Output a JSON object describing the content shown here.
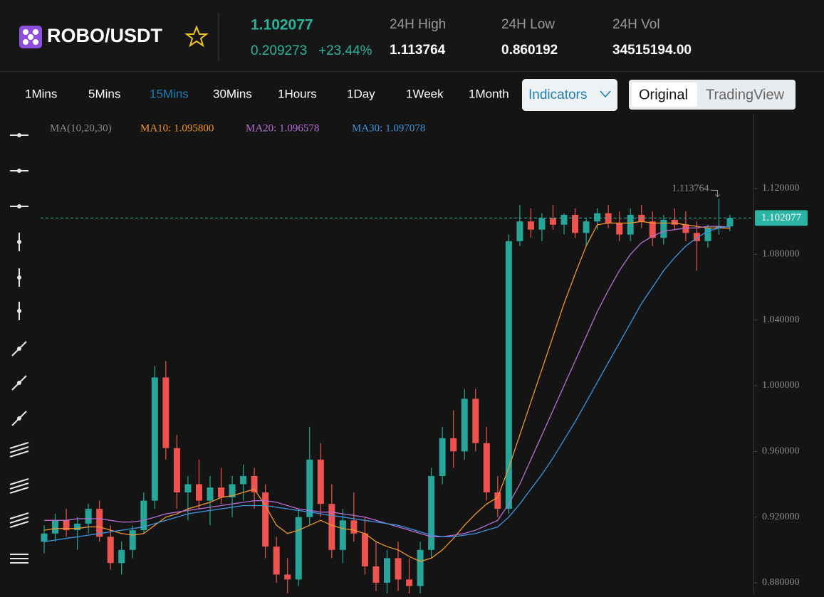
{
  "header": {
    "pair": "ROBO/USDT",
    "price": "1.102077",
    "change": "0.209273",
    "change_pct": "+23.44%",
    "stats": [
      {
        "label": "24H High",
        "value": "1.113764"
      },
      {
        "label": "24H Low",
        "value": "0.860192"
      },
      {
        "label": "24H Vol",
        "value": "34515194.00"
      }
    ]
  },
  "toolbar": {
    "intervals": [
      "1Mins",
      "5Mins",
      "15Mins",
      "30Mins",
      "1Hours",
      "1Day",
      "1Week",
      "1Month"
    ],
    "selected": 2,
    "indicators": "Indicators",
    "views": [
      "Original",
      "TradingView"
    ],
    "selected_view": 0
  },
  "chart_data": {
    "type": "candlestick",
    "legend_title": "MA(10,20,30)",
    "up_color": "#26a69a",
    "down_color": "#ef5350",
    "open": [
      0.905,
      0.91,
      0.918,
      0.912,
      0.916,
      0.925,
      0.908,
      0.892,
      0.9,
      0.912,
      0.93,
      1.005,
      0.962,
      0.935,
      0.94,
      0.93,
      0.938,
      0.932,
      0.94,
      0.945,
      0.935,
      0.902,
      0.885,
      0.882,
      0.92,
      0.955,
      0.928,
      0.9,
      0.918,
      0.91,
      0.89,
      0.88,
      0.895,
      0.882,
      0.878,
      0.9,
      0.945,
      0.968,
      0.96,
      0.992,
      0.965,
      0.935,
      0.925,
      1.088,
      1.1,
      1.095,
      1.102,
      1.098,
      1.104,
      1.093,
      1.1,
      1.105,
      1.099,
      1.092,
      1.104,
      1.1,
      1.09,
      1.101,
      1.098,
      1.093,
      1.088,
      1.096,
      1.097
    ],
    "high": [
      0.915,
      0.922,
      0.925,
      0.92,
      0.928,
      0.93,
      0.915,
      0.905,
      0.915,
      0.935,
      1.012,
      1.015,
      0.97,
      0.945,
      0.955,
      0.945,
      0.95,
      0.945,
      0.952,
      0.95,
      0.94,
      0.908,
      0.895,
      0.925,
      0.975,
      0.965,
      0.94,
      0.925,
      0.935,
      0.92,
      0.905,
      0.9,
      0.905,
      0.895,
      0.905,
      0.95,
      0.975,
      0.985,
      0.998,
      0.998,
      0.975,
      0.945,
      1.092,
      1.11,
      1.108,
      1.105,
      1.11,
      1.105,
      1.108,
      1.102,
      1.108,
      1.11,
      1.106,
      1.108,
      1.11,
      1.106,
      1.104,
      1.108,
      1.106,
      1.1,
      1.098,
      1.113764,
      1.104
    ],
    "low": [
      0.898,
      0.905,
      0.908,
      0.9,
      0.91,
      0.905,
      0.888,
      0.885,
      0.895,
      0.91,
      0.925,
      0.955,
      0.925,
      0.918,
      0.925,
      0.915,
      0.928,
      0.92,
      0.93,
      0.925,
      0.895,
      0.88,
      0.872,
      0.878,
      0.915,
      0.92,
      0.895,
      0.892,
      0.905,
      0.885,
      0.875,
      0.87,
      0.875,
      0.87,
      0.872,
      0.895,
      0.94,
      0.95,
      0.955,
      0.96,
      0.93,
      0.92,
      0.922,
      1.085,
      1.09,
      1.088,
      1.095,
      1.092,
      1.09,
      1.085,
      1.095,
      1.096,
      1.088,
      1.088,
      1.096,
      1.085,
      1.086,
      1.095,
      1.088,
      1.07,
      1.084,
      1.092,
      1.094
    ],
    "close": [
      0.91,
      0.918,
      0.912,
      0.916,
      0.925,
      0.908,
      0.892,
      0.9,
      0.912,
      0.93,
      1.005,
      0.962,
      0.935,
      0.94,
      0.93,
      0.938,
      0.932,
      0.94,
      0.945,
      0.935,
      0.902,
      0.885,
      0.882,
      0.92,
      0.955,
      0.928,
      0.9,
      0.918,
      0.91,
      0.89,
      0.88,
      0.895,
      0.882,
      0.878,
      0.9,
      0.945,
      0.968,
      0.96,
      0.992,
      0.965,
      0.935,
      0.925,
      1.088,
      1.1,
      1.095,
      1.102,
      1.098,
      1.104,
      1.093,
      1.1,
      1.105,
      1.099,
      1.092,
      1.104,
      1.1,
      1.09,
      1.101,
      1.098,
      1.093,
      1.088,
      1.096,
      1.097,
      1.102077
    ],
    "series": [
      {
        "name": "MA10: 1.095800",
        "color": "#f0962e",
        "values": [
          0.912,
          0.913,
          0.913,
          0.913,
          0.914,
          0.914,
          0.912,
          0.91,
          0.909,
          0.91,
          0.915,
          0.92,
          0.922,
          0.925,
          0.927,
          0.929,
          0.932,
          0.933,
          0.935,
          0.937,
          0.927,
          0.915,
          0.91,
          0.912,
          0.915,
          0.918,
          0.915,
          0.913,
          0.912,
          0.91,
          0.905,
          0.902,
          0.9,
          0.896,
          0.893,
          0.895,
          0.9,
          0.907,
          0.915,
          0.922,
          0.928,
          0.932,
          0.95,
          0.97,
          0.99,
          1.01,
          1.03,
          1.05,
          1.068,
          1.085,
          1.098,
          1.099,
          1.099,
          1.099,
          1.1,
          1.099,
          1.099,
          1.099,
          1.098,
          1.097,
          1.096,
          1.096,
          1.0958
        ]
      },
      {
        "name": "MA20: 1.096578",
        "color": "#b76fd6",
        "values": [
          0.918,
          0.918,
          0.918,
          0.919,
          0.919,
          0.919,
          0.918,
          0.917,
          0.917,
          0.918,
          0.92,
          0.922,
          0.923,
          0.924,
          0.925,
          0.926,
          0.927,
          0.928,
          0.929,
          0.93,
          0.93,
          0.929,
          0.927,
          0.925,
          0.924,
          0.923,
          0.923,
          0.922,
          0.921,
          0.92,
          0.918,
          0.916,
          0.914,
          0.912,
          0.91,
          0.908,
          0.908,
          0.909,
          0.91,
          0.912,
          0.915,
          0.918,
          0.928,
          0.94,
          0.955,
          0.97,
          0.985,
          1.0,
          1.015,
          1.03,
          1.045,
          1.058,
          1.07,
          1.08,
          1.087,
          1.091,
          1.094,
          1.095,
          1.096,
          1.096,
          1.097,
          1.097,
          1.096578
        ]
      },
      {
        "name": "MA30: 1.097078",
        "color": "#3d95e0",
        "values": [
          0.905,
          0.906,
          0.907,
          0.908,
          0.909,
          0.91,
          0.911,
          0.912,
          0.913,
          0.914,
          0.916,
          0.918,
          0.92,
          0.922,
          0.923,
          0.924,
          0.925,
          0.926,
          0.927,
          0.927,
          0.927,
          0.926,
          0.925,
          0.924,
          0.923,
          0.922,
          0.921,
          0.92,
          0.919,
          0.918,
          0.917,
          0.916,
          0.915,
          0.913,
          0.911,
          0.909,
          0.908,
          0.908,
          0.909,
          0.91,
          0.912,
          0.914,
          0.92,
          0.928,
          0.937,
          0.946,
          0.956,
          0.967,
          0.978,
          0.99,
          1.002,
          1.014,
          1.026,
          1.038,
          1.05,
          1.06,
          1.07,
          1.078,
          1.085,
          1.09,
          1.094,
          1.096,
          1.097078
        ]
      }
    ],
    "ylim": [
      0.8735,
      1.1655
    ],
    "yticks": [
      {
        "value": 0.88,
        "label": "0.880000"
      },
      {
        "value": 0.92,
        "label": "0.920000"
      },
      {
        "value": 0.96,
        "label": "0.960000"
      },
      {
        "value": 1.0,
        "label": "1.000000"
      },
      {
        "value": 1.04,
        "label": "1.040000"
      },
      {
        "value": 1.08,
        "label": "1.080000"
      },
      {
        "value": 1.12,
        "label": "1.120000"
      }
    ],
    "last_price": {
      "value": 1.102077,
      "label": "1.102077",
      "color": "#2bb3a3"
    },
    "high_marker": {
      "value": 1.113764,
      "label": "1.113764"
    }
  }
}
